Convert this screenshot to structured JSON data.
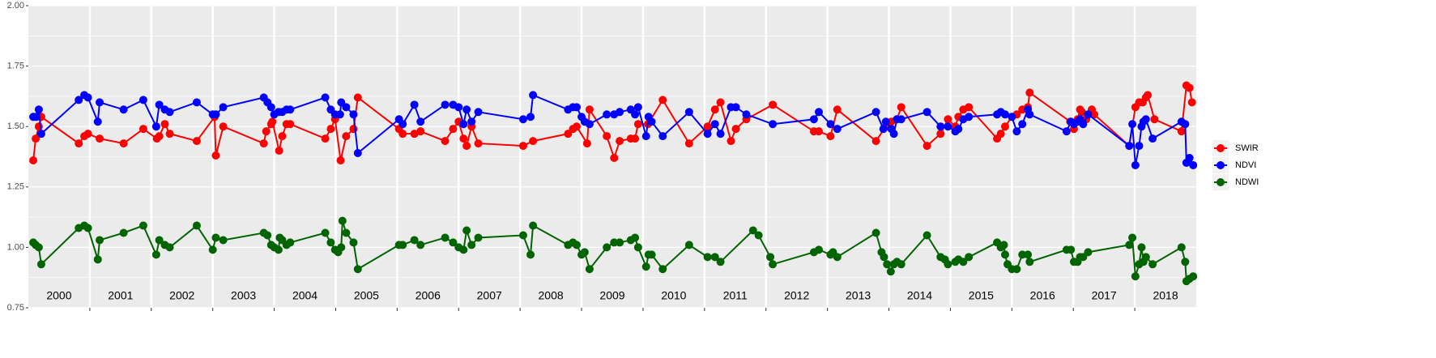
{
  "chart_data": {
    "type": "line",
    "xlim": [
      2000,
      2019
    ],
    "ylim": [
      0.75,
      2
    ],
    "yticks": [
      0.75,
      {
        "value": 1,
        "label": "1.00"
      },
      1.25,
      {
        "value": 1.5,
        "label": "1.50"
      },
      1.75,
      {
        "value": 2,
        "label": "2.00"
      }
    ],
    "xticks": [
      {
        "value": 2000.5,
        "label": "2000"
      },
      {
        "value": 2001.5,
        "label": "2001"
      },
      {
        "value": 2002.5,
        "label": "2002"
      },
      {
        "value": 2003.5,
        "label": "2003"
      },
      {
        "value": 2004.5,
        "label": "2004"
      },
      {
        "value": 2005.5,
        "label": "2005"
      },
      {
        "value": 2006.5,
        "label": "2006"
      },
      {
        "value": 2007.5,
        "label": "2007"
      },
      {
        "value": 2008.5,
        "label": "2008"
      },
      {
        "value": 2009.5,
        "label": "2009"
      },
      {
        "value": 2010.5,
        "label": "2010"
      },
      {
        "value": 2011.5,
        "label": "2011"
      },
      {
        "value": 2012.5,
        "label": "2012"
      },
      {
        "value": 2013.5,
        "label": "2013"
      },
      {
        "value": 2014.5,
        "label": "2014"
      },
      {
        "value": 2015.5,
        "label": "2015"
      },
      {
        "value": 2016.5,
        "label": "2016"
      },
      {
        "value": 2017.5,
        "label": "2017"
      },
      {
        "value": 2018.5,
        "label": "2018"
      }
    ],
    "xgrid": [
      2001,
      2002,
      2003,
      2004,
      2005,
      2006,
      2007,
      2008,
      2009,
      2010,
      2011,
      2012,
      2013,
      2014,
      2015,
      2016,
      2017,
      2018
    ],
    "grid": true,
    "legend": "right",
    "series": [
      {
        "name": "SWIR",
        "color": "#ff0000",
        "x": [
          2000.08,
          2000.12,
          2000.17,
          2000.21,
          2000.82,
          2000.91,
          2000.97,
          2001.16,
          2001.55,
          2001.87,
          2002.09,
          2002.13,
          2002.22,
          2002.3,
          2002.74,
          2003.03,
          2003.05,
          2003.17,
          2003.83,
          2003.87,
          2003.95,
          2003.97,
          2004.08,
          2004.13,
          2004.2,
          2004.26,
          2004.83,
          2004.92,
          2004.99,
          2005.08,
          2005.17,
          2005.29,
          2005.36,
          2006.03,
          2006.09,
          2006.28,
          2006.38,
          2006.78,
          2006.91,
          2007.0,
          2007.08,
          2007.13,
          2007.21,
          2007.32,
          2008.05,
          2008.21,
          2008.78,
          2008.86,
          2008.92,
          2009.09,
          2009.13,
          2009.41,
          2009.53,
          2009.62,
          2009.8,
          2009.87,
          2009.92,
          2010.08,
          2010.32,
          2010.75,
          2011.05,
          2011.17,
          2011.26,
          2011.43,
          2011.51,
          2011.68,
          2012.11,
          2012.78,
          2012.86,
          2013.05,
          2013.16,
          2013.79,
          2013.95,
          2014.04,
          2014.13,
          2014.2,
          2014.62,
          2014.84,
          2014.96,
          2015.08,
          2015.13,
          2015.21,
          2015.3,
          2015.76,
          2015.82,
          2015.89,
          2016.0,
          2016.08,
          2016.17,
          2016.26,
          2016.29,
          2016.95,
          2017.01,
          2017.07,
          2017.11,
          2017.14,
          2017.21,
          2017.3,
          2017.34,
          2017.91,
          2018.01,
          2018.07,
          2018.13,
          2018.18,
          2018.21,
          2018.32,
          2018.76,
          2018.84,
          2018.89,
          2018.93
        ],
        "values": [
          1.36,
          1.45,
          1.5,
          1.54,
          1.43,
          1.46,
          1.47,
          1.45,
          1.43,
          1.49,
          1.45,
          1.46,
          1.51,
          1.47,
          1.44,
          1.54,
          1.38,
          1.5,
          1.43,
          1.48,
          1.51,
          1.52,
          1.4,
          1.46,
          1.51,
          1.51,
          1.45,
          1.49,
          1.53,
          1.36,
          1.46,
          1.49,
          1.62,
          1.49,
          1.47,
          1.47,
          1.48,
          1.44,
          1.49,
          1.52,
          1.45,
          1.42,
          1.5,
          1.43,
          1.42,
          1.44,
          1.47,
          1.49,
          1.5,
          1.43,
          1.57,
          1.46,
          1.37,
          1.44,
          1.45,
          1.45,
          1.51,
          1.51,
          1.61,
          1.43,
          1.5,
          1.57,
          1.6,
          1.44,
          1.49,
          1.53,
          1.59,
          1.48,
          1.48,
          1.46,
          1.57,
          1.44,
          1.5,
          1.52,
          1.53,
          1.58,
          1.42,
          1.47,
          1.53,
          1.5,
          1.54,
          1.57,
          1.58,
          1.45,
          1.47,
          1.5,
          1.54,
          1.55,
          1.57,
          1.58,
          1.64,
          1.52,
          1.49,
          1.53,
          1.57,
          1.56,
          1.53,
          1.57,
          1.55,
          1.42,
          1.58,
          1.6,
          1.6,
          1.62,
          1.63,
          1.53,
          1.48,
          1.67,
          1.66,
          1.6
        ]
      },
      {
        "name": "NDVI",
        "color": "#0000ff",
        "x": [
          2000.08,
          2000.13,
          2000.17,
          2000.21,
          2000.82,
          2000.91,
          2000.97,
          2001.13,
          2001.16,
          2001.55,
          2001.87,
          2002.08,
          2002.13,
          2002.22,
          2002.3,
          2002.74,
          2003.0,
          2003.05,
          2003.17,
          2003.83,
          2003.89,
          2003.95,
          2004.0,
          2004.07,
          2004.13,
          2004.2,
          2004.26,
          2004.83,
          2004.92,
          2004.99,
          2005.07,
          2005.09,
          2005.17,
          2005.29,
          2005.36,
          2006.03,
          2006.09,
          2006.28,
          2006.38,
          2006.78,
          2006.91,
          2007.0,
          2007.08,
          2007.13,
          2007.21,
          2007.32,
          2008.05,
          2008.17,
          2008.21,
          2008.78,
          2008.86,
          2008.92,
          2009.0,
          2009.05,
          2009.13,
          2009.41,
          2009.53,
          2009.62,
          2009.8,
          2009.87,
          2009.92,
          2010.05,
          2010.09,
          2010.14,
          2010.32,
          2010.75,
          2011.05,
          2011.17,
          2011.26,
          2011.43,
          2011.51,
          2011.68,
          2012.11,
          2012.78,
          2012.86,
          2013.05,
          2013.16,
          2013.79,
          2013.91,
          2013.95,
          2014.04,
          2014.08,
          2014.13,
          2014.2,
          2014.62,
          2014.84,
          2014.96,
          2015.08,
          2015.13,
          2015.21,
          2015.3,
          2015.76,
          2015.82,
          2015.89,
          2016.0,
          2016.08,
          2016.17,
          2016.26,
          2016.29,
          2016.89,
          2016.96,
          2017.01,
          2017.07,
          2017.11,
          2017.16,
          2017.24,
          2017.91,
          2017.96,
          2018.01,
          2018.07,
          2018.11,
          2018.14,
          2018.18,
          2018.29,
          2018.76,
          2018.82,
          2018.84,
          2018.89,
          2018.95
        ],
        "values": [
          1.54,
          1.54,
          1.57,
          1.47,
          1.61,
          1.63,
          1.62,
          1.52,
          1.6,
          1.57,
          1.61,
          1.5,
          1.59,
          1.57,
          1.56,
          1.6,
          1.55,
          1.55,
          1.58,
          1.62,
          1.6,
          1.58,
          1.55,
          1.56,
          1.56,
          1.57,
          1.57,
          1.62,
          1.57,
          1.55,
          1.55,
          1.6,
          1.58,
          1.55,
          1.39,
          1.53,
          1.51,
          1.59,
          1.52,
          1.59,
          1.59,
          1.58,
          1.51,
          1.57,
          1.52,
          1.56,
          1.53,
          1.54,
          1.63,
          1.57,
          1.58,
          1.58,
          1.54,
          1.52,
          1.51,
          1.55,
          1.55,
          1.56,
          1.57,
          1.55,
          1.58,
          1.46,
          1.54,
          1.52,
          1.46,
          1.56,
          1.47,
          1.51,
          1.47,
          1.58,
          1.58,
          1.55,
          1.51,
          1.53,
          1.56,
          1.51,
          1.49,
          1.56,
          1.49,
          1.52,
          1.49,
          1.47,
          1.53,
          1.53,
          1.56,
          1.5,
          1.5,
          1.48,
          1.49,
          1.53,
          1.54,
          1.55,
          1.56,
          1.55,
          1.54,
          1.48,
          1.51,
          1.57,
          1.55,
          1.48,
          1.52,
          1.51,
          1.52,
          1.53,
          1.51,
          1.55,
          1.42,
          1.51,
          1.34,
          1.42,
          1.5,
          1.52,
          1.53,
          1.45,
          1.52,
          1.51,
          1.35,
          1.37,
          1.34
        ]
      },
      {
        "name": "NDWI",
        "color": "#006400",
        "x": [
          2000.08,
          2000.12,
          2000.17,
          2000.21,
          2000.82,
          2000.91,
          2000.97,
          2001.13,
          2001.16,
          2001.55,
          2001.87,
          2002.08,
          2002.13,
          2002.22,
          2002.3,
          2002.74,
          2003.0,
          2003.05,
          2003.17,
          2003.83,
          2003.89,
          2003.95,
          2004.0,
          2004.07,
          2004.09,
          2004.13,
          2004.2,
          2004.26,
          2004.83,
          2004.92,
          2004.99,
          2005.04,
          2005.09,
          2005.11,
          2005.17,
          2005.29,
          2005.36,
          2006.03,
          2006.09,
          2006.28,
          2006.38,
          2006.78,
          2006.91,
          2007.0,
          2007.08,
          2007.13,
          2007.21,
          2007.32,
          2008.05,
          2008.17,
          2008.21,
          2008.78,
          2008.86,
          2008.92,
          2009.0,
          2009.05,
          2009.13,
          2009.41,
          2009.53,
          2009.62,
          2009.8,
          2009.87,
          2009.92,
          2010.05,
          2010.09,
          2010.14,
          2010.32,
          2010.75,
          2011.05,
          2011.17,
          2011.26,
          2011.79,
          2011.88,
          2012.07,
          2012.11,
          2012.78,
          2012.86,
          2013.05,
          2013.09,
          2013.16,
          2013.79,
          2013.88,
          2013.92,
          2013.97,
          2014.03,
          2014.08,
          2014.13,
          2014.2,
          2014.62,
          2014.84,
          2014.91,
          2014.96,
          2015.08,
          2015.13,
          2015.21,
          2015.3,
          2015.76,
          2015.82,
          2015.87,
          2015.89,
          2015.93,
          2016.0,
          2016.08,
          2016.17,
          2016.26,
          2016.29,
          2016.89,
          2016.96,
          2017.01,
          2017.07,
          2017.11,
          2017.16,
          2017.24,
          2017.91,
          2017.96,
          2018.01,
          2018.07,
          2018.11,
          2018.14,
          2018.18,
          2018.29,
          2018.76,
          2018.82,
          2018.84,
          2018.89,
          2018.95
        ],
        "values": [
          1.02,
          1.01,
          1.0,
          0.93,
          1.08,
          1.09,
          1.08,
          0.95,
          1.03,
          1.06,
          1.09,
          0.97,
          1.03,
          1.01,
          1.0,
          1.09,
          0.99,
          1.04,
          1.03,
          1.06,
          1.05,
          1.01,
          1.0,
          0.99,
          1.04,
          1.03,
          1.01,
          1.02,
          1.06,
          1.02,
          0.99,
          0.98,
          1.0,
          1.11,
          1.06,
          1.02,
          0.91,
          1.01,
          1.01,
          1.03,
          1.01,
          1.04,
          1.02,
          1.0,
          0.99,
          1.07,
          1.01,
          1.04,
          1.05,
          0.97,
          1.09,
          1.01,
          1.02,
          1.01,
          0.97,
          0.98,
          0.91,
          1.0,
          1.02,
          1.02,
          1.03,
          1.04,
          1.0,
          0.92,
          0.97,
          0.97,
          0.91,
          1.01,
          0.96,
          0.96,
          0.94,
          1.07,
          1.05,
          0.96,
          0.93,
          0.98,
          0.99,
          0.97,
          0.98,
          0.96,
          1.06,
          0.98,
          0.96,
          0.93,
          0.9,
          0.93,
          0.94,
          0.93,
          1.05,
          0.96,
          0.95,
          0.93,
          0.94,
          0.95,
          0.94,
          0.96,
          1.02,
          1.0,
          1.01,
          0.97,
          0.93,
          0.91,
          0.91,
          0.97,
          0.97,
          0.94,
          0.99,
          0.99,
          0.94,
          0.94,
          0.96,
          0.96,
          0.98,
          1.01,
          1.04,
          0.88,
          0.93,
          1.0,
          0.94,
          0.96,
          0.93,
          1.0,
          0.94,
          0.86,
          0.87,
          0.88
        ]
      }
    ]
  }
}
